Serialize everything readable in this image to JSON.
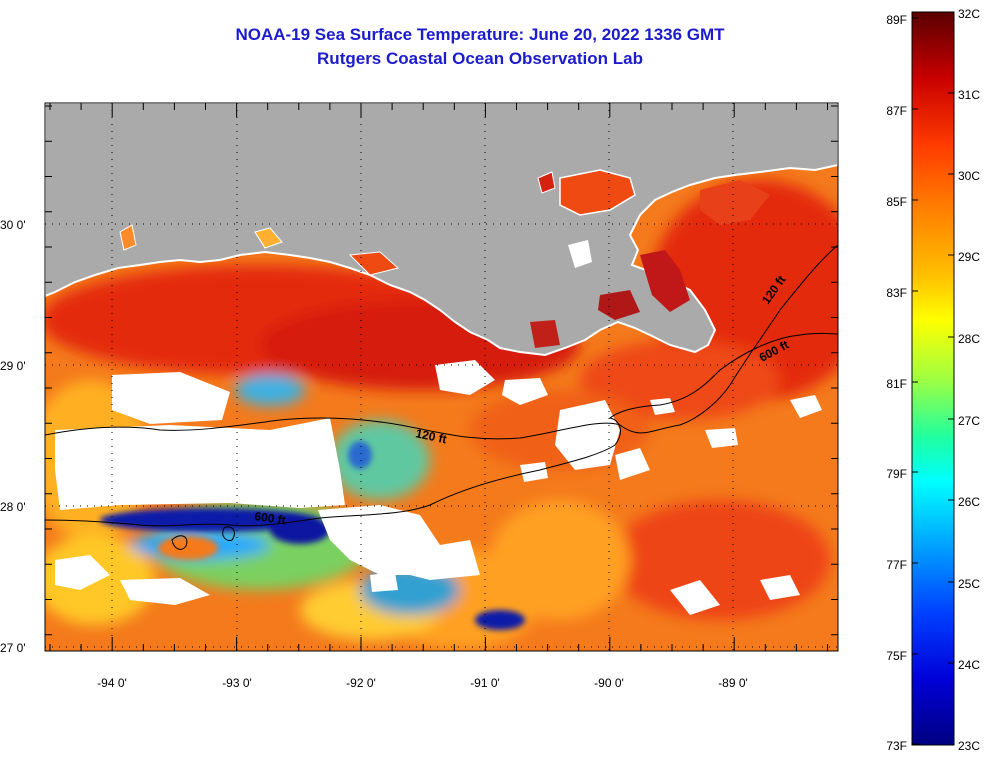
{
  "header": {
    "title": "NOAA-19 Sea Surface Temperature:  June 20, 2022 1336 GMT",
    "subtitle": "Rutgers Coastal Ocean Observation Lab"
  },
  "map": {
    "lon_ticks": [
      "-94 0'",
      "-93 0'",
      "-92 0'",
      "-91 0'",
      "-90 0'",
      "-89 0'"
    ],
    "lat_ticks": [
      "30 0'",
      "29 0'",
      "28 0'",
      "27 0'"
    ],
    "contours": [
      "120 ft",
      "600 ft",
      "600 ft",
      "120 ft"
    ],
    "colors": {
      "land": "#aaaaaa",
      "cloud": "#ffffff",
      "warm": "#e8361a",
      "cool": "#1030c0"
    }
  },
  "colorbar": {
    "fahrenheit": [
      "89F",
      "87F",
      "85F",
      "83F",
      "81F",
      "79F",
      "77F",
      "75F",
      "73F"
    ],
    "celsius": [
      "32C",
      "31C",
      "30C",
      "29C",
      "28C",
      "27C",
      "26C",
      "25C",
      "24C",
      "23C"
    ]
  }
}
